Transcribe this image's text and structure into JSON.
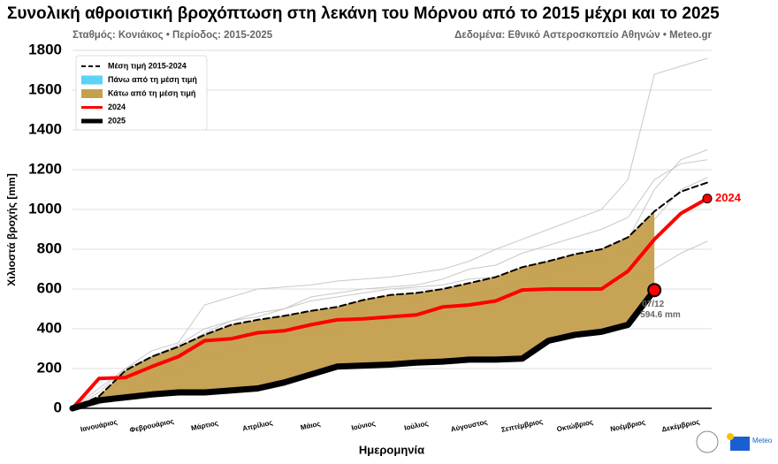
{
  "chart_data": {
    "type": "line",
    "title": "Συνολική αθροιστική βροχόπτωση στη λεκάνη του Μόρνου από το 2015 μέχρι και το 2025",
    "subtitle_left": "Σταθμός: Κονιάκος • Περίοδος: 2015-2025",
    "subtitle_right": "Δεδομένα: Εθνικό Αστεροσκοπείο Αθηνών • Meteo.gr",
    "y_label": "Χιλιοστά βροχής [mm]",
    "x_label": "Ημερομηνία",
    "categories": [
      null,
      "Ιανουάριος",
      null,
      "Φεβρουάριος",
      null,
      "Μάρτιος",
      null,
      "Απρίλιος",
      null,
      "Μάιος",
      null,
      "Ιούνιος",
      null,
      "Ιούλιος",
      null,
      "Αύγουστος",
      null,
      "Σεπτέμβριος",
      null,
      "Οκτώβριος",
      null,
      "Νοέμβριος",
      null,
      "Δεκέμβριος",
      null
    ],
    "ylim": [
      0,
      1800
    ],
    "yticks": [
      0,
      200,
      400,
      600,
      800,
      1000,
      1200,
      1400,
      1600,
      1800
    ],
    "grid": true,
    "other_years": {
      "color": "#c8c8c8",
      "values": [
        [
          0,
          100,
          200,
          290,
          330,
          520,
          560,
          600,
          610,
          620,
          640,
          650,
          660,
          680,
          700,
          740,
          800,
          850,
          900,
          950,
          1000,
          1150,
          1680,
          1720,
          1760
        ],
        [
          0,
          50,
          150,
          250,
          300,
          380,
          440,
          460,
          500,
          540,
          560,
          580,
          600,
          610,
          620,
          650,
          660,
          700,
          720,
          760,
          800,
          850,
          1100,
          1250,
          1300
        ],
        [
          0,
          60,
          180,
          220,
          280,
          320,
          380,
          420,
          440,
          470,
          480,
          520,
          540,
          560,
          570,
          590,
          600,
          640,
          680,
          720,
          750,
          800,
          950,
          1100,
          1160
        ],
        [
          0,
          20,
          80,
          140,
          200,
          250,
          300,
          330,
          360,
          380,
          400,
          420,
          440,
          460,
          480,
          500,
          520,
          560,
          580,
          620,
          640,
          660,
          700,
          780,
          840
        ],
        [
          0,
          80,
          200,
          260,
          320,
          400,
          440,
          480,
          500,
          560,
          580,
          600,
          610,
          620,
          650,
          700,
          720,
          780,
          820,
          860,
          900,
          960,
          1150,
          1230,
          1250
        ]
      ]
    },
    "series": [
      {
        "name": "Μέση τιμή 2015-2024",
        "color": "#000000",
        "dashed": true,
        "values": [
          0,
          60,
          190,
          260,
          310,
          370,
          420,
          445,
          465,
          490,
          510,
          545,
          570,
          580,
          600,
          630,
          660,
          710,
          740,
          775,
          800,
          860,
          990,
          1090,
          1135
        ]
      },
      {
        "name": "2024",
        "color": "#ff0000",
        "values": [
          0,
          150,
          155,
          210,
          260,
          340,
          350,
          380,
          390,
          420,
          445,
          450,
          460,
          470,
          510,
          520,
          540,
          595,
          600,
          600,
          600,
          690,
          850,
          980,
          1055
        ]
      },
      {
        "name": "2025",
        "color": "#000000",
        "values": [
          0,
          40,
          55,
          70,
          80,
          80,
          90,
          100,
          130,
          170,
          210,
          215,
          220,
          230,
          235,
          245,
          245,
          250,
          340,
          370,
          385,
          420,
          594.6,
          null,
          null
        ]
      }
    ],
    "areas": [
      {
        "name": "Πάνω από τη μέση τιμή",
        "color": "#5bd3f7"
      },
      {
        "name": "Κάτω από τη μέση τιμή",
        "color": "#c49f4c"
      }
    ],
    "end_label": "2024",
    "annotation_date": "07/12",
    "annotation_value": "594.6 mm",
    "logo_text": "Meteo"
  }
}
